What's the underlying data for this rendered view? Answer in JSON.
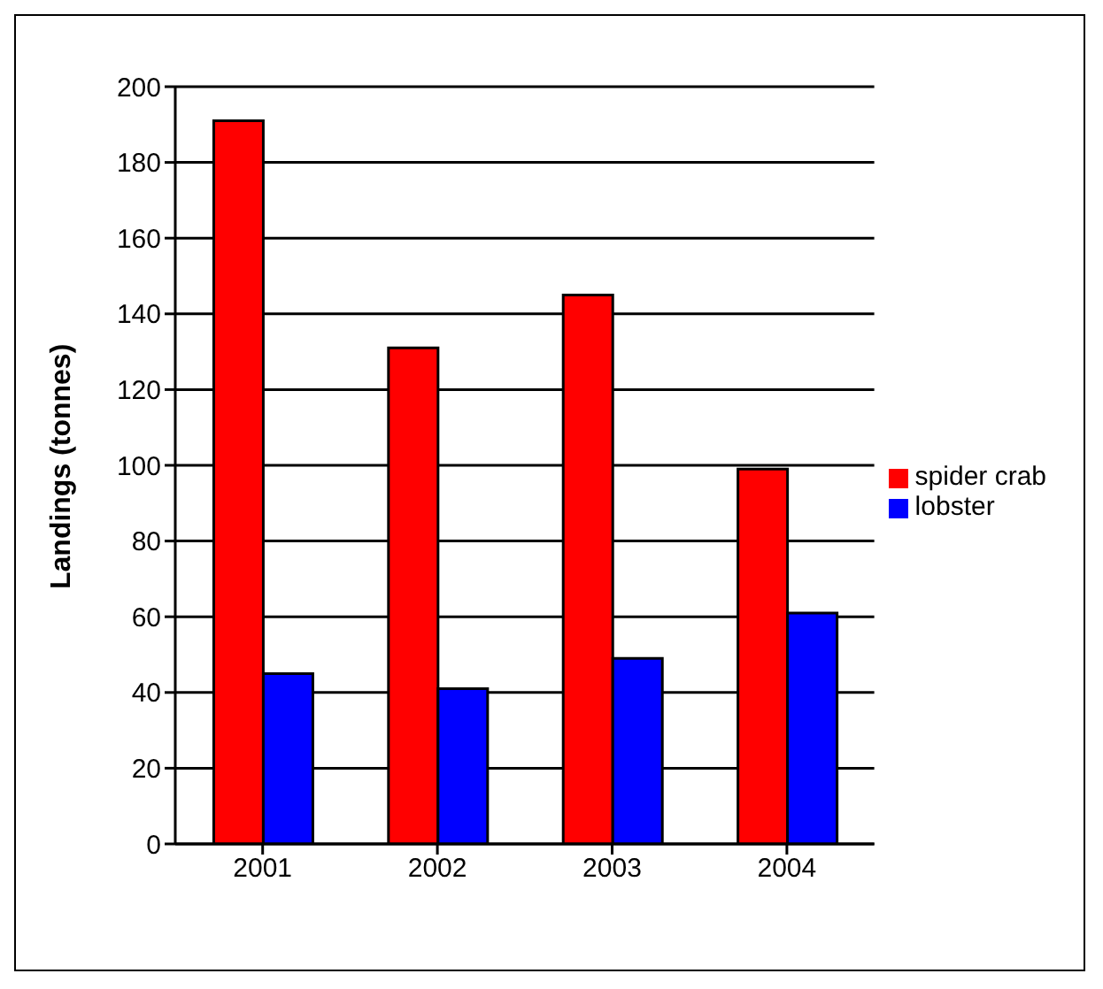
{
  "chart_data": {
    "type": "bar",
    "ylabel": "Landings (tonnes)",
    "categories": [
      "2001",
      "2002",
      "2003",
      "2004"
    ],
    "series": [
      {
        "name": "spider crab",
        "color": "#ff0000",
        "values": [
          191,
          131,
          145,
          99
        ]
      },
      {
        "name": "lobster",
        "color": "#0000ff",
        "values": [
          45,
          41,
          49,
          61
        ]
      }
    ],
    "ylim": [
      0,
      200
    ],
    "yticks": [
      0,
      20,
      40,
      60,
      80,
      100,
      120,
      140,
      160,
      180,
      200
    ],
    "grid": "y",
    "legend": "right"
  }
}
